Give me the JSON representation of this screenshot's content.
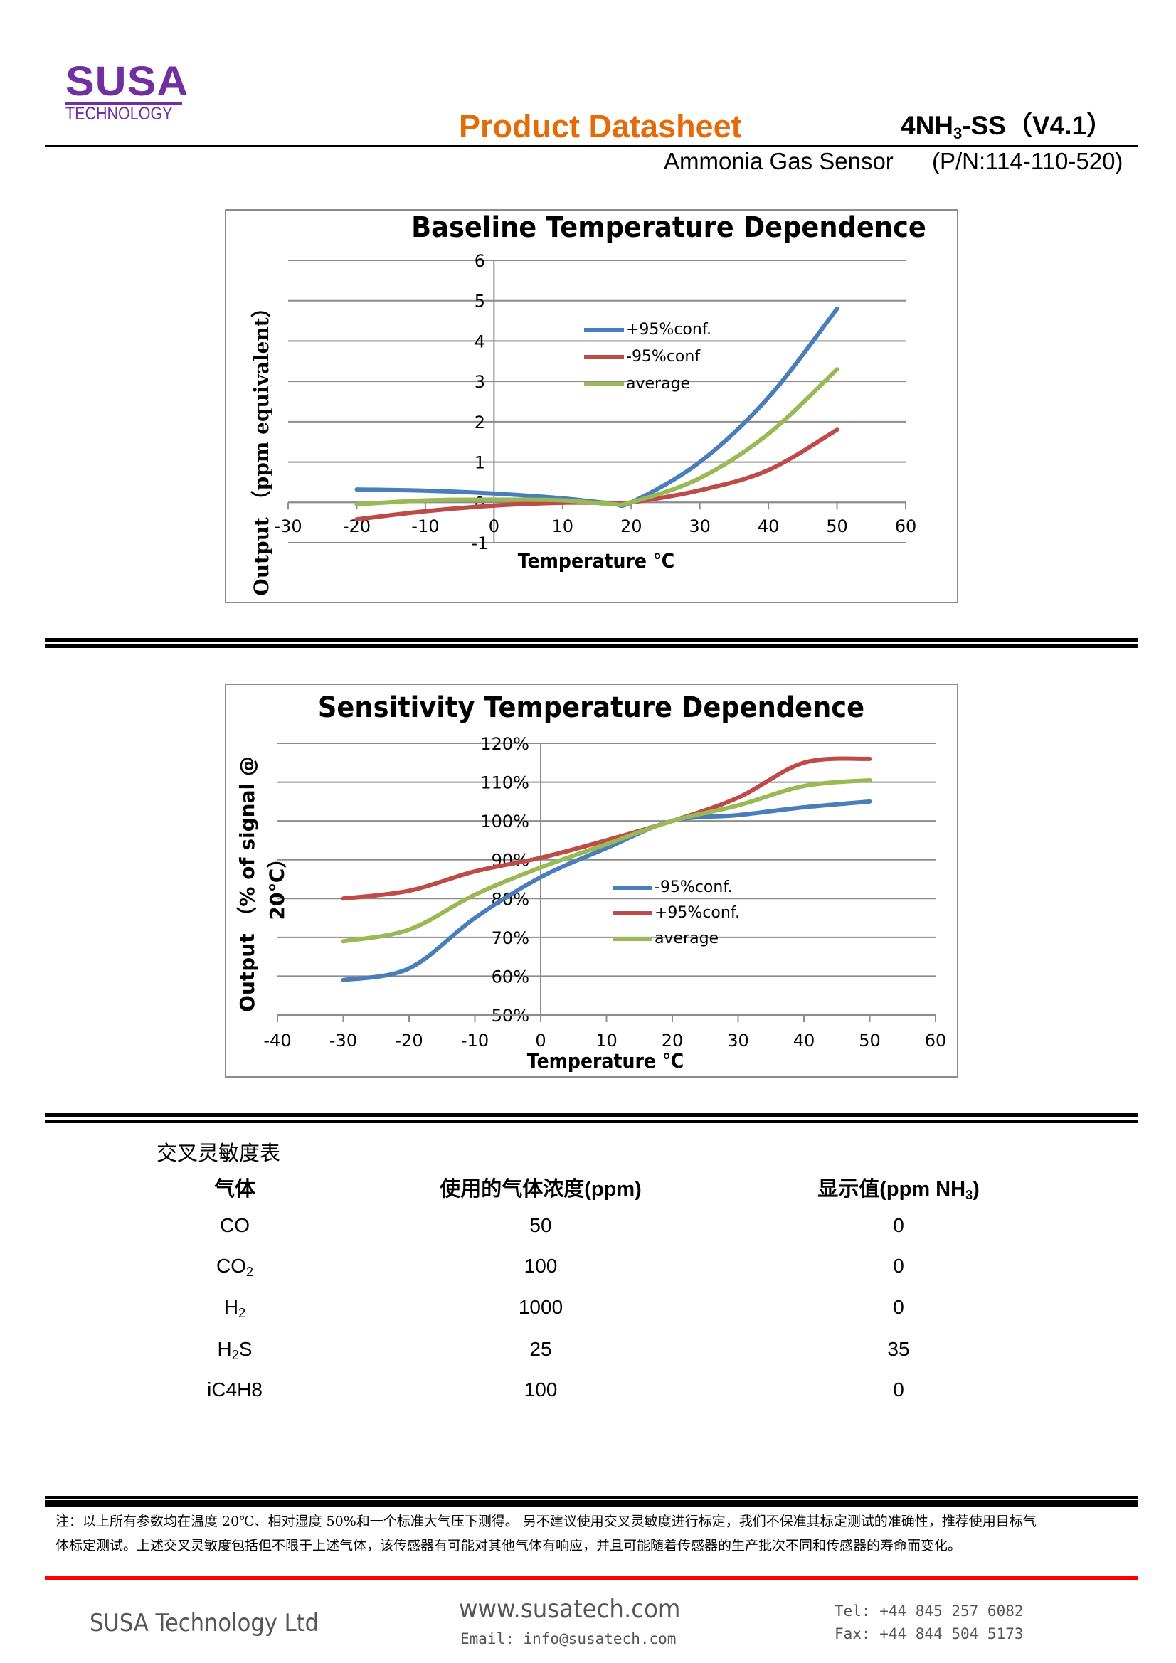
{
  "logo": {
    "brand": "SUSA",
    "sub": "TECHNOLOGY"
  },
  "header": {
    "title": "Product Datasheet",
    "model_pre": "4NH",
    "model_sub": "3",
    "model_post": "-SS（V4.1）",
    "product": "Ammonia Gas Sensor",
    "part_number": "(P/N:114-110-520)"
  },
  "chart_data": [
    {
      "type": "line",
      "title": "Baseline Temperature Dependence",
      "xlabel": "Temperature ℃",
      "ylabel": "Output （ppm equivalent）",
      "xlim": [
        -30,
        60
      ],
      "ylim": [
        -1,
        6
      ],
      "xticks": [
        -30,
        -20,
        -10,
        0,
        10,
        20,
        30,
        40,
        50,
        60
      ],
      "yticks": [
        -1,
        0,
        1,
        2,
        3,
        4,
        5,
        6
      ],
      "ytick_labels": [
        "-1",
        "0",
        "1",
        "2",
        "3",
        "4",
        "5",
        "6"
      ],
      "grid": true,
      "legend": "center",
      "x": [
        -20,
        -10,
        0,
        10,
        17,
        20,
        30,
        40,
        50
      ],
      "series": [
        {
          "name": "+95%conf.",
          "color": "#4a7ebb",
          "values": [
            0.32,
            0.29,
            0.22,
            0.1,
            -0.02,
            0.0,
            1.0,
            2.6,
            4.8
          ]
        },
        {
          "name": "-95%conf",
          "color": "#be4b48",
          "values": [
            -0.42,
            -0.22,
            -0.08,
            -0.01,
            -0.01,
            0.0,
            0.3,
            0.8,
            1.8
          ]
        },
        {
          "name": "average",
          "color": "#98b954",
          "values": [
            -0.05,
            0.05,
            0.07,
            0.05,
            -0.04,
            0.0,
            0.6,
            1.7,
            3.3
          ]
        }
      ]
    },
    {
      "type": "line",
      "title": "Sensitivity Temperature Dependence",
      "xlabel": "Temperature ℃",
      "ylabel": "Output （% of signal @",
      "ylabel2": "20℃）",
      "xlim": [
        -40,
        60
      ],
      "ylim": [
        50,
        120
      ],
      "xticks": [
        -40,
        -30,
        -20,
        -10,
        0,
        10,
        20,
        30,
        40,
        50,
        60
      ],
      "yticks": [
        50,
        60,
        70,
        80,
        90,
        100,
        110,
        120
      ],
      "ytick_labels": [
        "50%",
        "60%",
        "70%",
        "80%",
        "90%",
        "100%",
        "110%",
        "120%"
      ],
      "grid": true,
      "legend": "center-right",
      "x": [
        -30,
        -20,
        -10,
        0,
        10,
        20,
        30,
        40,
        50
      ],
      "series": [
        {
          "name": "-95%conf.",
          "color": "#4a7ebb",
          "values": [
            59,
            62,
            75,
            85.5,
            93,
            100,
            101.5,
            103.5,
            105
          ]
        },
        {
          "name": "+95%conf.",
          "color": "#be4b48",
          "values": [
            80,
            82,
            87,
            90.5,
            95,
            100,
            106,
            115,
            116
          ]
        },
        {
          "name": "average",
          "color": "#98b954",
          "values": [
            69,
            72,
            81,
            88,
            94,
            100,
            104,
            109,
            110.5
          ]
        }
      ]
    }
  ],
  "cross_table": {
    "title": "交叉灵敏度表",
    "headers": {
      "gas": "气体",
      "conc": "使用的气体浓度(ppm)",
      "disp_pre": "显示值(ppm NH",
      "disp_sub": "3",
      "disp_post": ")"
    },
    "rows": [
      {
        "gas": "CO",
        "gas_sub": "",
        "gas_post": "",
        "conc": "50",
        "value": "0"
      },
      {
        "gas": "CO",
        "gas_sub": "2",
        "gas_post": "",
        "conc": "100",
        "value": "0"
      },
      {
        "gas": "H",
        "gas_sub": "2",
        "gas_post": "",
        "conc": "1000",
        "value": "0"
      },
      {
        "gas": "H",
        "gas_sub": "2",
        "gas_post": "S",
        "conc": "25",
        "value": "35"
      },
      {
        "gas": "iC4H8",
        "gas_sub": "",
        "gas_post": "",
        "conc": "100",
        "value": "0"
      }
    ]
  },
  "note": {
    "line1": "注：以上所有参数均在温度 20℃、相对湿度 50%和一个标准大气压下测得。 另不建议使用交叉灵敏度进行标定，我们不保准其标定测试的准确性，推荐使用目标气",
    "line2": "体标定测试。上述交叉灵敏度包括但不限于上述气体，该传感器有可能对其他气体有响应，并且可能随着传感器的生产批次不同和传感器的寿命而变化。"
  },
  "footer": {
    "company": "SUSA Technology Ltd",
    "website": "www.susatech.com",
    "email": "Email: info@susatech.com",
    "tel": "Tel: +44 845 257 6082",
    "fax": "Fax: +44 844 504 5173"
  }
}
